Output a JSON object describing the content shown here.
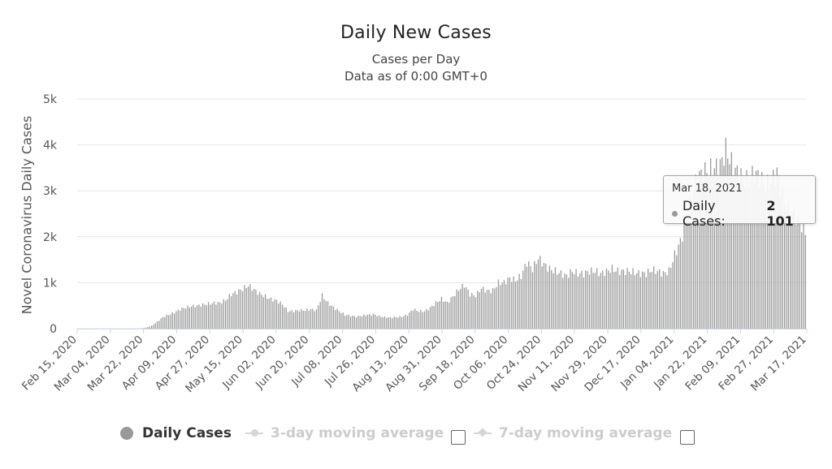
{
  "chart_data": {
    "type": "bar",
    "title": "Daily New Cases",
    "subtitle": "Cases per Day",
    "subtitle2": "Data as of 0:00 GMT+0",
    "ylabel": "Novel Coronavirus Daily Cases",
    "xlabel": "",
    "ylim": [
      0,
      5000
    ],
    "y_ticks": [
      {
        "value": 0,
        "label": "0"
      },
      {
        "value": 1000,
        "label": "1k"
      },
      {
        "value": 2000,
        "label": "2k"
      },
      {
        "value": 3000,
        "label": "3k"
      },
      {
        "value": 4000,
        "label": "4k"
      },
      {
        "value": 5000,
        "label": "5k"
      }
    ],
    "x_tick_labels": [
      "Feb 15, 2020",
      "Mar 04, 2020",
      "Mar 22, 2020",
      "Apr 09, 2020",
      "Apr 27, 2020",
      "May 15, 2020",
      "Jun 02, 2020",
      "Jun 20, 2020",
      "Jul 08, 2020",
      "Jul 26, 2020",
      "Aug 13, 2020",
      "Aug 31, 2020",
      "Sep 18, 2020",
      "Oct 06, 2020",
      "Oct 24, 2020",
      "Nov 11, 2020",
      "Nov 29, 2020",
      "Dec 17, 2020",
      "Jan 04, 2021",
      "Jan 22, 2021",
      "Feb 09, 2021",
      "Feb 27, 2021",
      "Mar 17, 2021"
    ],
    "x_start_date": "Feb 15, 2020",
    "x_end_date": "Mar 18, 2021",
    "grid": true,
    "legend_position": "bottom-center",
    "series": [
      {
        "name": "Daily Cases",
        "color": "#999999",
        "values_every_3_days_from_feb_15_2020": [
          0,
          0,
          0,
          0,
          0,
          0,
          0,
          0,
          0,
          0,
          0,
          0,
          20,
          60,
          150,
          250,
          300,
          350,
          420,
          460,
          490,
          500,
          520,
          540,
          560,
          560,
          620,
          750,
          800,
          860,
          940,
          850,
          760,
          700,
          640,
          610,
          530,
          380,
          380,
          400,
          400,
          420,
          400,
          720,
          560,
          460,
          380,
          300,
          280,
          260,
          280,
          300,
          310,
          270,
          250,
          240,
          250,
          260,
          300,
          420,
          380,
          380,
          450,
          560,
          650,
          560,
          700,
          850,
          950,
          750,
          720,
          880,
          820,
          830,
          1000,
          1000,
          1100,
          1050,
          1150,
          1450,
          1300,
          1540,
          1400,
          1300,
          1250,
          1200,
          1150,
          1250,
          1200,
          1200,
          1250,
          1250,
          1200,
          1250,
          1300,
          1250,
          1250,
          1250,
          1220,
          1200,
          1200,
          1280,
          1250,
          1200,
          1250,
          1600,
          1900,
          2300,
          2900,
          3300,
          3400,
          3450,
          3500,
          3550,
          3900,
          3600,
          3400,
          3300,
          3200,
          3400,
          3300,
          3100,
          3200,
          3400,
          2900,
          2600,
          2500,
          2300,
          2101
        ]
      },
      {
        "name": "3-day moving average",
        "visible": false
      },
      {
        "name": "7-day moving average",
        "visible": false
      }
    ]
  },
  "tooltip": {
    "date": "Mar 18, 2021",
    "series_label": "Daily Cases:",
    "value_text": "2 101"
  },
  "legend": {
    "daily_label": "Daily Cases",
    "ma3_label": "3-day moving average",
    "ma7_label": "7-day moving average"
  },
  "colors": {
    "bar": "#999999",
    "grid": "#e6e6e6",
    "axis": "#ccd6eb"
  }
}
